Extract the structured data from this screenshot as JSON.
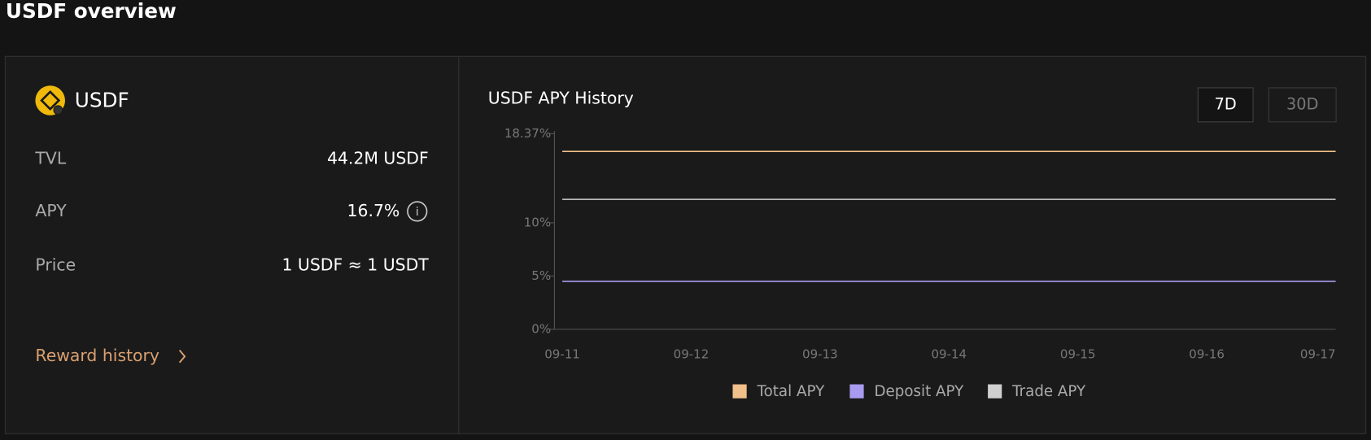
{
  "header": {
    "title": "USDF overview"
  },
  "panel": {
    "coin": "USDF",
    "rows": [
      {
        "label": "TVL",
        "value": "44.2M USDF"
      },
      {
        "label": "APY",
        "value": "16.7%"
      },
      {
        "label": "Price",
        "value": "1 USDF ≈ 1 USDT"
      }
    ],
    "link": "Reward history"
  },
  "controls": {
    "buttons": [
      "7D",
      "30D"
    ]
  },
  "chart_data": {
    "type": "line",
    "title": "USDF APY History",
    "categories": [
      "09-11",
      "09-12",
      "09-13",
      "09-14",
      "09-15",
      "09-16",
      "09-17"
    ],
    "series": [
      {
        "name": "Total APY",
        "color": "#f2c08a",
        "values": [
          16.7,
          16.7,
          16.7,
          16.7,
          16.7,
          16.7,
          16.7
        ]
      },
      {
        "name": "Deposit APY",
        "color": "#a99cf0",
        "values": [
          4.5,
          4.5,
          4.5,
          4.5,
          4.5,
          4.5,
          4.5
        ]
      },
      {
        "name": "Trade APY",
        "color": "#d0d0d0",
        "values": [
          12.2,
          12.2,
          12.2,
          12.2,
          12.2,
          12.2,
          12.2
        ]
      }
    ],
    "ylim": [
      0,
      18.37
    ],
    "yticks": [
      {
        "value": 0,
        "label": "0%"
      },
      {
        "value": 5,
        "label": "5%"
      },
      {
        "value": 10,
        "label": "10%"
      },
      {
        "value": 18.37,
        "label": "18.37%"
      }
    ],
    "legend": "bottom"
  }
}
